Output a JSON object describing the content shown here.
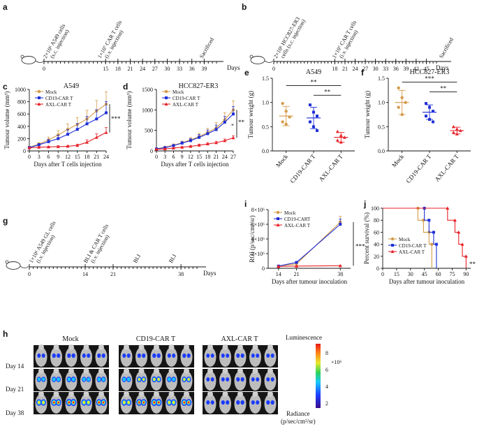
{
  "panels": {
    "a": {
      "label": "a",
      "annotations": [
        "2×10⁶ A549 cells",
        "(s.c. injection)",
        "1×10⁷ CAR T cells",
        "(i.v. injection)",
        "Sacrificed"
      ],
      "ticks": [
        "0",
        "15",
        "18",
        "21",
        "24",
        "27",
        "30",
        "33",
        "36",
        "39"
      ],
      "days_label": "Days"
    },
    "b": {
      "label": "b",
      "annotations": [
        "2×10⁶ HCC827-ER3",
        "cells (s.c. injection)",
        "1×10⁷ CAR T cells",
        "(i.v. injection)",
        "Sacrificed"
      ],
      "ticks": [
        "0",
        "18",
        "21",
        "24",
        "27",
        "30",
        "33",
        "36",
        "39",
        "42",
        "45"
      ],
      "days_label": "Days"
    },
    "g": {
      "label": "g",
      "annotations": [
        "1×10⁶ A549 GL cells",
        "(i.v. injection)",
        "BLI & CAR T cells",
        "(i.v. injection)",
        "BLI",
        "BLI"
      ],
      "ticks": [
        "0",
        "14",
        "21",
        "38"
      ],
      "days_label": "Days"
    },
    "h": {
      "label": "h",
      "groups": [
        "Mock",
        "CD19-CAR T",
        "AXL-CAR T"
      ],
      "days": [
        "Day 14",
        "Day 21",
        "Day 38"
      ],
      "colorbar_title": "Luminescence",
      "colorbar_ticks": [
        "8",
        "6",
        "4",
        "2"
      ],
      "colorbar_exp": "×10⁶",
      "radiance_label": "Radiance",
      "radiance_unit": "(p/sec/cm²/sr)"
    }
  },
  "colors": {
    "mock": "#d49b4a",
    "cd19": "#1f2fd6",
    "axl": "#e8222a"
  },
  "chart_data": [
    {
      "id": "c",
      "label": "c",
      "type": "line",
      "title": "A549",
      "xlabel": "Days after T cells injection",
      "ylabel": "Tumour volume (mm³)",
      "x": [
        0,
        3,
        6,
        9,
        12,
        15,
        18,
        21,
        24
      ],
      "xticks": [
        "0",
        "3",
        "6",
        "9",
        "12",
        "15",
        "18",
        "21",
        "24"
      ],
      "ylim": [
        0,
        1000
      ],
      "yticks": [
        "0",
        "200",
        "400",
        "600",
        "800",
        "1000"
      ],
      "series": [
        {
          "name": "Mock",
          "key": "mock",
          "values": [
            60,
            110,
            180,
            260,
            350,
            430,
            520,
            650,
            760
          ],
          "err": [
            10,
            25,
            45,
            70,
            90,
            110,
            140,
            170,
            200
          ]
        },
        {
          "name": "CD19-CAR T",
          "key": "cd19",
          "values": [
            55,
            100,
            150,
            200,
            270,
            350,
            440,
            520,
            620
          ],
          "err": [
            10,
            20,
            35,
            55,
            75,
            95,
            120,
            150,
            180
          ]
        },
        {
          "name": "AXL-CAR T",
          "key": "axl",
          "values": [
            50,
            60,
            65,
            70,
            75,
            90,
            140,
            220,
            300
          ],
          "err": [
            5,
            10,
            10,
            15,
            15,
            20,
            40,
            60,
            80
          ]
        }
      ],
      "legend": [
        "Mock",
        "CD19-CAR T",
        "AXL-CAR T"
      ],
      "sig": "***"
    },
    {
      "id": "d",
      "label": "d",
      "type": "line",
      "title": "HCC827-ER3",
      "xlabel": "Days after T cells injection",
      "ylabel": "Tumour volume (mm³)",
      "x": [
        0,
        3,
        6,
        9,
        12,
        15,
        18,
        21,
        24,
        27
      ],
      "xticks": [
        "0",
        "3",
        "6",
        "9",
        "12",
        "15",
        "18",
        "21",
        "24",
        "27"
      ],
      "ylim": [
        0,
        1500
      ],
      "yticks": [
        "0",
        "500",
        "1000",
        "1500"
      ],
      "series": [
        {
          "name": "Mock",
          "key": "mock",
          "values": [
            50,
            90,
            140,
            200,
            270,
            350,
            450,
            560,
            760,
            1000
          ],
          "err": [
            10,
            20,
            30,
            40,
            60,
            80,
            100,
            130,
            170,
            220
          ]
        },
        {
          "name": "CD19-CAR T",
          "key": "cd19",
          "values": [
            50,
            80,
            130,
            190,
            250,
            330,
            420,
            520,
            700,
            900
          ],
          "err": [
            10,
            15,
            25,
            35,
            50,
            70,
            90,
            110,
            140,
            180
          ]
        },
        {
          "name": "AXL-CAR T",
          "key": "axl",
          "values": [
            40,
            50,
            70,
            90,
            110,
            140,
            170,
            200,
            250,
            320
          ],
          "err": [
            5,
            10,
            10,
            15,
            20,
            25,
            30,
            35,
            40,
            50
          ]
        }
      ],
      "legend": [
        "Mock",
        "CD19-CAR T",
        "AXL-CAR T"
      ],
      "sig": "**",
      "sig2": "*"
    },
    {
      "id": "e",
      "label": "e",
      "type": "scatter",
      "title": "A549",
      "ylabel": "Tumour weight (g)",
      "categories": [
        "Mock",
        "CD19-CAR T",
        "AXL-CAR T"
      ],
      "ylim": [
        0,
        1.5
      ],
      "yticks": [
        "0.0",
        "0.5",
        "1.0",
        "1.5"
      ],
      "groups": [
        {
          "key": "mock",
          "mean": 0.72,
          "sd": 0.2,
          "points": [
            0.98,
            0.82,
            0.7,
            0.6,
            0.55
          ]
        },
        {
          "key": "cd19",
          "mean": 0.68,
          "sd": 0.22,
          "points": [
            0.95,
            0.8,
            0.72,
            0.6,
            0.5,
            0.42
          ]
        },
        {
          "key": "axl",
          "mean": 0.28,
          "sd": 0.1,
          "points": [
            0.4,
            0.32,
            0.28,
            0.22,
            0.18
          ]
        }
      ],
      "brackets": [
        {
          "from": 0,
          "to": 2,
          "y": 1.35,
          "text": "**"
        },
        {
          "from": 1,
          "to": 2,
          "y": 1.15,
          "text": "**"
        }
      ]
    },
    {
      "id": "f",
      "label": "f",
      "type": "scatter",
      "title": "HCC827-ER3",
      "ylabel": "Tumour weight (g)",
      "categories": [
        "Mock",
        "CD19-CAR T",
        "AXL-CAR T"
      ],
      "ylim": [
        0,
        1.5
      ],
      "yticks": [
        "0.0",
        "0.5",
        "1.0",
        "1.5"
      ],
      "groups": [
        {
          "key": "mock",
          "mean": 1.0,
          "sd": 0.25,
          "points": [
            1.3,
            1.1,
            1.0,
            0.9,
            0.75
          ]
        },
        {
          "key": "cd19",
          "mean": 0.8,
          "sd": 0.15,
          "points": [
            0.98,
            0.9,
            0.82,
            0.72,
            0.65,
            0.6
          ]
        },
        {
          "key": "axl",
          "mean": 0.42,
          "sd": 0.07,
          "points": [
            0.5,
            0.45,
            0.42,
            0.38,
            0.35
          ]
        }
      ],
      "brackets": [
        {
          "from": 0,
          "to": 2,
          "y": 1.42,
          "text": "***"
        },
        {
          "from": 1,
          "to": 2,
          "y": 1.22,
          "text": "**"
        }
      ]
    },
    {
      "id": "i",
      "label": "i",
      "type": "line",
      "xlabel": "Days after tumour inoculation",
      "ylabel": "ROI (p/sec/cm²/sr)",
      "x": [
        14,
        21,
        38
      ],
      "xticks": [
        "14",
        "21",
        "38"
      ],
      "xlim": [
        10,
        42
      ],
      "ylim": [
        0,
        8000000
      ],
      "yticks": [
        "0",
        "2×10⁶",
        "4×10⁶",
        "6×10⁶",
        "8×10⁶"
      ],
      "series": [
        {
          "name": "Mock",
          "key": "mock",
          "values": [
            300000,
            600000,
            6300000
          ],
          "err": [
            50000,
            100000,
            800000
          ]
        },
        {
          "name": "CD19-CART",
          "key": "cd19",
          "values": [
            300000,
            800000,
            6000000
          ],
          "err": [
            50000,
            150000,
            700000
          ]
        },
        {
          "name": "AXL-CAR T",
          "key": "axl",
          "values": [
            250000,
            300000,
            350000
          ],
          "err": [
            30000,
            40000,
            50000
          ]
        }
      ],
      "legend": [
        "Mock",
        "CD19-CART",
        "AXL-CAR T"
      ],
      "sig": "***"
    },
    {
      "id": "j",
      "label": "j",
      "type": "line",
      "xlabel": "Days after tumour inoculation",
      "ylabel": "Percent survival (%)",
      "xlim": [
        0,
        95
      ],
      "xticks": [
        "0",
        "15",
        "30",
        "45",
        "60",
        "75",
        "90"
      ],
      "ylim": [
        0,
        100
      ],
      "yticks": [
        "0",
        "20",
        "40",
        "60",
        "80",
        "100"
      ],
      "series": [
        {
          "name": "Mock",
          "key": "mock",
          "steps": [
            [
              0,
              100
            ],
            [
              38,
              100
            ],
            [
              38,
              80
            ],
            [
              44,
              80
            ],
            [
              44,
              60
            ],
            [
              50,
              60
            ],
            [
              50,
              40
            ],
            [
              53,
              40
            ],
            [
              53,
              0
            ]
          ]
        },
        {
          "name": "CD19-CAR T",
          "key": "cd19",
          "steps": [
            [
              0,
              100
            ],
            [
              45,
              100
            ],
            [
              45,
              80
            ],
            [
              50,
              80
            ],
            [
              50,
              60
            ],
            [
              55,
              60
            ],
            [
              55,
              40
            ],
            [
              58,
              40
            ],
            [
              58,
              0
            ]
          ]
        },
        {
          "name": "AXL-CAR T",
          "key": "axl",
          "steps": [
            [
              0,
              100
            ],
            [
              70,
              100
            ],
            [
              70,
              80
            ],
            [
              78,
              80
            ],
            [
              78,
              60
            ],
            [
              82,
              60
            ],
            [
              82,
              40
            ],
            [
              86,
              40
            ],
            [
              86,
              20
            ],
            [
              90,
              20
            ],
            [
              90,
              0
            ]
          ]
        }
      ],
      "legend": [
        "Mock",
        "CD19-CAR T",
        "AXL-CAR T"
      ],
      "sig": "**"
    }
  ]
}
